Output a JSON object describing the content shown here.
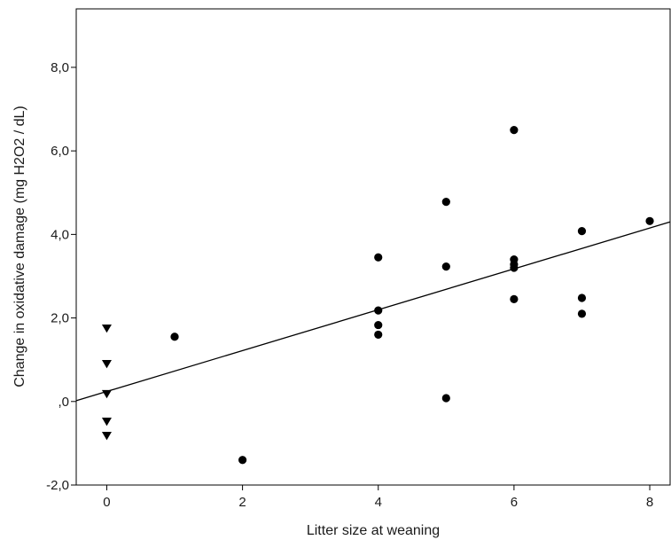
{
  "chart_data": {
    "type": "scatter",
    "title": "",
    "xlabel": "Litter size at weaning",
    "ylabel": "Change in oxidative damage (mg H2O2 / dL)",
    "xlim": [
      -0.45,
      8.3
    ],
    "ylim": [
      -2.0,
      9.4
    ],
    "xticks": [
      0,
      2,
      4,
      6,
      8
    ],
    "xtick_labels": [
      "0",
      "2",
      "4",
      "6",
      "8"
    ],
    "yticks": [
      -2.0,
      0.0,
      2.0,
      4.0,
      6.0,
      8.0
    ],
    "ytick_labels": [
      "-2,0",
      ",0",
      "2,0",
      "4,0",
      "6,0",
      "8,0"
    ],
    "grid": false,
    "legend": "none",
    "series": [
      {
        "marker": "triangle-down",
        "points": [
          {
            "x": 0,
            "y": 1.75
          },
          {
            "x": 0,
            "y": 0.9
          },
          {
            "x": 0,
            "y": 0.18
          },
          {
            "x": 0,
            "y": -0.48
          },
          {
            "x": 0,
            "y": -0.82
          }
        ]
      },
      {
        "marker": "circle",
        "points": [
          {
            "x": 1,
            "y": 1.55
          },
          {
            "x": 2,
            "y": -1.4
          },
          {
            "x": 4,
            "y": 3.45
          },
          {
            "x": 4,
            "y": 2.18
          },
          {
            "x": 4,
            "y": 1.83
          },
          {
            "x": 4,
            "y": 1.6
          },
          {
            "x": 5,
            "y": 4.78
          },
          {
            "x": 5,
            "y": 3.23
          },
          {
            "x": 5,
            "y": 0.08
          },
          {
            "x": 6,
            "y": 6.5
          },
          {
            "x": 6,
            "y": 3.4
          },
          {
            "x": 6,
            "y": 3.28
          },
          {
            "x": 6,
            "y": 3.2
          },
          {
            "x": 6,
            "y": 2.45
          },
          {
            "x": 7,
            "y": 4.08
          },
          {
            "x": 7,
            "y": 2.48
          },
          {
            "x": 7,
            "y": 2.1
          },
          {
            "x": 8,
            "y": 4.32
          }
        ]
      }
    ],
    "fit_line": {
      "x": [
        -0.45,
        8.3
      ],
      "y": [
        0.02,
        4.3
      ]
    }
  }
}
